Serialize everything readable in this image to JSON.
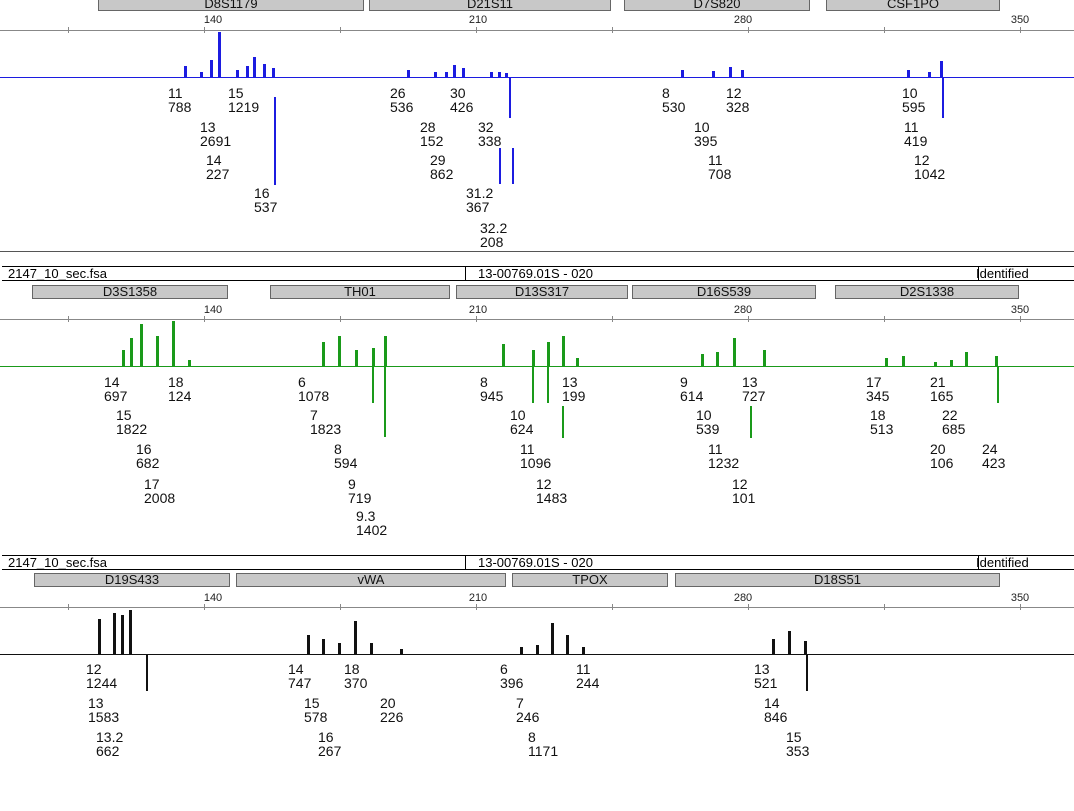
{
  "chart_data": [
    {
      "type": "bar",
      "panel": "blue",
      "color": "#1c1ce0",
      "scale_labels": [
        "140",
        "210",
        "280",
        "350"
      ],
      "loci": [
        {
          "name": "D8S1179",
          "alleles": [
            {
              "a": "11",
              "h": "788"
            },
            {
              "a": "15",
              "h": "1219"
            },
            {
              "a": "13",
              "h": "2691"
            },
            {
              "a": "14",
              "h": "227"
            },
            {
              "a": "16",
              "h": "537"
            }
          ]
        },
        {
          "name": "D21S11",
          "alleles": [
            {
              "a": "26",
              "h": "536"
            },
            {
              "a": "30",
              "h": "426"
            },
            {
              "a": "28",
              "h": "152"
            },
            {
              "a": "32",
              "h": "338"
            },
            {
              "a": "29",
              "h": "862"
            },
            {
              "a": "31.2",
              "h": "367"
            },
            {
              "a": "32.2",
              "h": "208"
            }
          ]
        },
        {
          "name": "D7S820",
          "alleles": [
            {
              "a": "8",
              "h": "530"
            },
            {
              "a": "12",
              "h": "328"
            },
            {
              "a": "10",
              "h": "395"
            },
            {
              "a": "11",
              "h": "708"
            }
          ]
        },
        {
          "name": "CSF1PO",
          "alleles": [
            {
              "a": "10",
              "h": "595"
            },
            {
              "a": "11",
              "h": "419"
            },
            {
              "a": "12",
              "h": "1042"
            }
          ]
        }
      ]
    },
    {
      "type": "bar",
      "panel": "green",
      "color": "#1a9a1a",
      "scale_labels": [
        "140",
        "210",
        "280",
        "350"
      ],
      "loci": [
        {
          "name": "D3S1358",
          "alleles": [
            {
              "a": "14",
              "h": "697"
            },
            {
              "a": "18",
              "h": "124"
            },
            {
              "a": "15",
              "h": "1822"
            },
            {
              "a": "16",
              "h": "682"
            },
            {
              "a": "17",
              "h": "2008"
            }
          ]
        },
        {
          "name": "TH01",
          "alleles": [
            {
              "a": "6",
              "h": "1078"
            },
            {
              "a": "7",
              "h": "1823"
            },
            {
              "a": "8",
              "h": "594"
            },
            {
              "a": "9",
              "h": "719"
            },
            {
              "a": "9.3",
              "h": "1402"
            }
          ]
        },
        {
          "name": "D13S317",
          "alleles": [
            {
              "a": "8",
              "h": "945"
            },
            {
              "a": "13",
              "h": "199"
            },
            {
              "a": "10",
              "h": "624"
            },
            {
              "a": "11",
              "h": "1096"
            },
            {
              "a": "12",
              "h": "1483"
            }
          ]
        },
        {
          "name": "D16S539",
          "alleles": [
            {
              "a": "9",
              "h": "614"
            },
            {
              "a": "13",
              "h": "727"
            },
            {
              "a": "10",
              "h": "539"
            },
            {
              "a": "11",
              "h": "1232"
            },
            {
              "a": "12",
              "h": "101"
            }
          ]
        },
        {
          "name": "D2S1338",
          "alleles": [
            {
              "a": "17",
              "h": "345"
            },
            {
              "a": "21",
              "h": "165"
            },
            {
              "a": "18",
              "h": "513"
            },
            {
              "a": "22",
              "h": "685"
            },
            {
              "a": "20",
              "h": "106"
            },
            {
              "a": "24",
              "h": "423"
            }
          ]
        }
      ]
    },
    {
      "type": "bar",
      "panel": "black",
      "color": "#111111",
      "scale_labels": [
        "140",
        "210",
        "280",
        "350"
      ],
      "loci": [
        {
          "name": "D19S433",
          "alleles": [
            {
              "a": "12",
              "h": "1244"
            },
            {
              "a": "13",
              "h": "1583"
            },
            {
              "a": "13.2",
              "h": "662"
            }
          ]
        },
        {
          "name": "vWA",
          "alleles": [
            {
              "a": "14",
              "h": "747"
            },
            {
              "a": "18",
              "h": "370"
            },
            {
              "a": "15",
              "h": "578"
            },
            {
              "a": "20",
              "h": "226"
            },
            {
              "a": "16",
              "h": "267"
            }
          ]
        },
        {
          "name": "TPOX",
          "alleles": [
            {
              "a": "6",
              "h": "396"
            },
            {
              "a": "11",
              "h": "244"
            },
            {
              "a": "7",
              "h": "246"
            },
            {
              "a": "8",
              "h": "1171"
            }
          ]
        },
        {
          "name": "D18S51",
          "alleles": [
            {
              "a": "13",
              "h": "521"
            },
            {
              "a": "14",
              "h": "846"
            },
            {
              "a": "15",
              "h": "353"
            }
          ]
        }
      ]
    }
  ],
  "info_bars": [
    {
      "file": "2147_10_sec.fsa",
      "sample": "13-00769.01S  -  020",
      "status": "Identified"
    },
    {
      "file": "2147_10_sec.fsa",
      "sample": "13-00769.01S  -  020",
      "status": "Identified"
    }
  ]
}
